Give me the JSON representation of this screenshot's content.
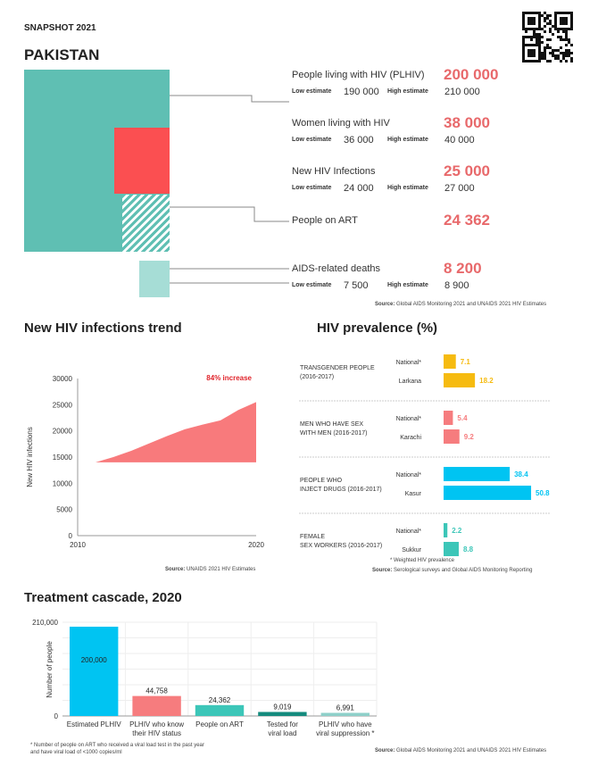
{
  "header": {
    "snapshot": "SNAPSHOT 2021",
    "country": "PAKISTAN",
    "qr_icon": "qr-code-icon"
  },
  "colors": {
    "teal": "#5fbfb3",
    "red": "#fb4f51",
    "light_teal": "#a6ddd6",
    "value_red": "#e8696b",
    "yellow": "#f6bb10",
    "pink": "#f67c7e",
    "cyan": "#00c4f2",
    "dark_teal": "#158b7e"
  },
  "summary": {
    "low_label": "Low estimate",
    "high_label": "High estimate",
    "items": [
      {
        "label": "People living with HIV (PLHIV)",
        "value": "200 000",
        "low": "190 000",
        "high": "210 000"
      },
      {
        "label": "Women living with HIV",
        "value": "38 000",
        "low": "36 000",
        "high": "40 000"
      },
      {
        "label": "New HIV Infections",
        "value": "25 000",
        "low": "24 000",
        "high": "27 000"
      },
      {
        "label": "People on ART",
        "value": "24 362"
      },
      {
        "label": "AIDS-related deaths",
        "value": "8 200",
        "low": "7 500",
        "high": "8 900"
      }
    ],
    "source_label": "Source:",
    "source": "Global AIDS Monitoring 2021 and UNAIDS 2021 HIV Estimates"
  },
  "chart_data": [
    {
      "type": "area",
      "title": "New HIV infections trend",
      "annotation": "84% increase",
      "ylabel": "New HIV infections",
      "xlabel": "",
      "x": [
        2011,
        2012,
        2013,
        2014,
        2015,
        2016,
        2017,
        2018,
        2019,
        2020
      ],
      "values": [
        14000,
        15000,
        16200,
        17600,
        19000,
        20300,
        21200,
        22000,
        24000,
        25500
      ],
      "baseline": 14000,
      "xlim": [
        2010,
        2020
      ],
      "ylim": [
        0,
        30000
      ],
      "xticks": [
        "2010",
        "2020"
      ],
      "yticks": [
        "0",
        "5000",
        "10000",
        "15000",
        "20000",
        "25000",
        "30000"
      ],
      "source_label": "Source:",
      "source": "UNAIDS 2021 HIV Estimates"
    },
    {
      "type": "bar",
      "orientation": "horizontal",
      "title": "HIV prevalence (%)",
      "groups": [
        {
          "name": "TRANSGENDER PEOPLE (2016-2017)",
          "lines": [
            "TRANSGENDER PEOPLE",
            "(2016-2017)"
          ],
          "color": "#f6bb10",
          "bars": [
            {
              "label": "National*",
              "value": 7.1
            },
            {
              "label": "Larkana",
              "value": 18.2
            }
          ]
        },
        {
          "name": "MEN WHO HAVE SEX WITH MEN (2016-2017)",
          "lines": [
            "MEN WHO HAVE SEX",
            "WITH MEN (2016-2017)"
          ],
          "color": "#f67c7e",
          "bars": [
            {
              "label": "National*",
              "value": 5.4
            },
            {
              "label": "Karachi",
              "value": 9.2
            }
          ]
        },
        {
          "name": "PEOPLE WHO INJECT DRUGS (2016-2017)",
          "lines": [
            "PEOPLE WHO",
            "INJECT DRUGS (2016-2017)"
          ],
          "color": "#00c4f2",
          "bars": [
            {
              "label": "National*",
              "value": 38.4
            },
            {
              "label": "Kasur",
              "value": 50.8
            }
          ]
        },
        {
          "name": "FEMALE SEX WORKERS (2016-2017)",
          "lines": [
            "FEMALE",
            "SEX WORKERS (2016-2017)"
          ],
          "color": "#3cc6b8",
          "bars": [
            {
              "label": "National*",
              "value": 2.2
            },
            {
              "label": "Sukkur",
              "value": 8.8
            }
          ]
        }
      ],
      "footnote": "* Weighted HIV prevalence",
      "source_label": "Source:",
      "source": "Serological surveys and Global AIDS Monitoring Reporting"
    },
    {
      "type": "bar",
      "title": "Treatment cascade, 2020",
      "ylabel": "Number of people",
      "ylim": [
        0,
        210000
      ],
      "yticks": [
        "0",
        "210,000"
      ],
      "categories": [
        [
          "Estimated PLHIV"
        ],
        [
          "PLHIV who know",
          "their HIV status"
        ],
        [
          "People on ART"
        ],
        [
          "Tested for",
          "viral load"
        ],
        [
          "PLHIV who have",
          "viral suppression *"
        ]
      ],
      "values": [
        200000,
        44758,
        24362,
        9019,
        6991
      ],
      "value_labels": [
        "200,000",
        "44,758",
        "24,362",
        "9,019",
        "6,991"
      ],
      "colors": [
        "#00c4f2",
        "#f67c7e",
        "#3cc6b8",
        "#158b7e",
        "#8ed0c9"
      ],
      "footnote": [
        "* Number of people on ART who received a viral load test in the past year",
        "and have viral load of <1000 copies/ml"
      ],
      "source_label": "Source:",
      "source": "Global AIDS Monitoring 2021 and UNAIDS 2021 HIV Estimates"
    }
  ]
}
